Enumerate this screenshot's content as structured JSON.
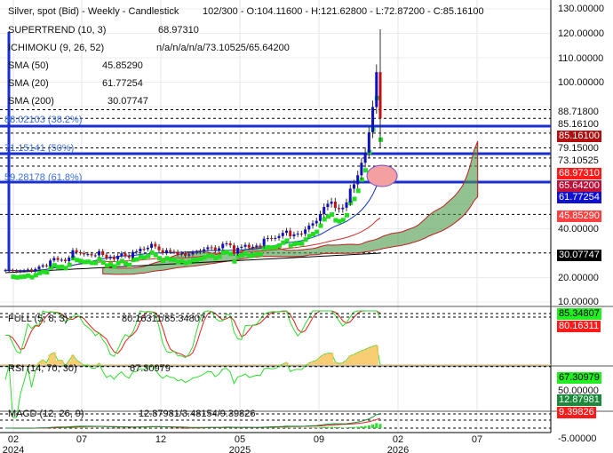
{
  "header": {
    "title": "Silver, spot (Bid) - Weekly - Candlestick",
    "ohlc": "102/300 - O:104.11600 - H:121.62800 - L:72.87200 - C:85.16100"
  },
  "indicators": [
    {
      "name": "SUPERTREND (10, 3)",
      "value": "68.97310"
    },
    {
      "name": "ICHIMOKU (9, 26, 52)",
      "value": "n/a/n/a/n/a/73.10525/65.64200"
    },
    {
      "name": "SMA (50)",
      "value": "45.85290"
    },
    {
      "name": "SMA (20)",
      "value": "61.77254"
    },
    {
      "name": "SMA (200)",
      "value": "30.07747"
    }
  ],
  "fib_levels": [
    {
      "label": "88.02103 (38.2%)"
    },
    {
      "label": "71.15141 (50%)"
    },
    {
      "label": "59.28178 (61.8%)"
    }
  ],
  "oscillators": {
    "stoch": {
      "name": "FULL (5, 8, 3)",
      "value": "80.16311/85.34807"
    },
    "rsi": {
      "name": "RSI (14, 70, 30)",
      "value": "67.30979"
    },
    "macd": {
      "name": "MACD (12, 26, 9)",
      "value": "12.87981/3.48154/9.39826"
    }
  },
  "price_axis": [
    "130.00000",
    "120.00000",
    "110.00000",
    "100.00000",
    "40.00000",
    "20.00000",
    "10.00000"
  ],
  "price_axis_values": [
    130,
    120,
    110,
    100,
    40,
    20,
    10
  ],
  "level_labels": [
    "88.71800",
    "85.16100",
    "79.15000",
    "73.10525"
  ],
  "level_values": [
    88.718,
    85.161,
    79.15,
    73.10525
  ],
  "badges": [
    {
      "text": "85.16100",
      "value": 85.161,
      "color": "#b01010"
    },
    {
      "text": "68.97310",
      "value": 68.9731,
      "color": "#ff1a1a"
    },
    {
      "text": "65.64200",
      "value": 65.642,
      "color": "#c0103a"
    },
    {
      "text": "61.77254",
      "value": 61.77254,
      "color": "#1010d0"
    },
    {
      "text": "45.85290",
      "value": 45.8529,
      "color": "#ff4040"
    },
    {
      "text": "30.07747",
      "value": 30.07747,
      "color": "#000000"
    }
  ],
  "osc_badges": [
    {
      "text": "85.34807",
      "color": "#22ee22",
      "fg": "#000"
    },
    {
      "text": "80.16311",
      "color": "#ff1a1a",
      "fg": "#fff"
    },
    {
      "text": "67.30979",
      "color": "#22ee22",
      "fg": "#000"
    },
    {
      "text": "12.87981",
      "color": "#1a8a3a",
      "fg": "#fff"
    },
    {
      "text": "9.39826",
      "color": "#ff1a1a",
      "fg": "#fff"
    }
  ],
  "osc_axis": {
    "rsi_mid": "50.00000",
    "macd_low": "-5.00000"
  },
  "x_axis": [
    {
      "m": "02",
      "y": "2024"
    },
    {
      "m": "07",
      "y": ""
    },
    {
      "m": "12",
      "y": ""
    },
    {
      "m": "05",
      "y": "2025"
    },
    {
      "m": "09",
      "y": ""
    },
    {
      "m": "02",
      "y": "2026"
    },
    {
      "m": "07",
      "y": ""
    }
  ],
  "colors": {
    "up": "#1010c0",
    "down": "#c01010",
    "sma20": "#1030c0",
    "sma50": "#d03030",
    "sma200": "#000000",
    "supertrend": "#22dd22",
    "fib": "#1a2fd0"
  },
  "chart_data": {
    "type": "candlestick",
    "title": "Silver, spot (Bid) - Weekly - Candlestick",
    "ylim": [
      -5,
      130
    ],
    "x_start": "2024-01",
    "x_end": "2026-01",
    "closes": [
      23,
      23,
      22.8,
      22.5,
      22.7,
      22.9,
      23.3,
      22.6,
      23.5,
      24.5,
      25,
      24.8,
      27,
      28,
      27.2,
      27.3,
      26.7,
      28.2,
      31.2,
      30.4,
      30,
      29.5,
      29.6,
      29.1,
      29.1,
      30.8,
      29.3,
      27.9,
      28.5,
      27.5,
      28.9,
      29.9,
      28.8,
      28.2,
      30.5,
      30.7,
      31.8,
      31.6,
      32.2,
      33.8,
      32.7,
      31.2,
      30.1,
      31.2,
      30.6,
      30.5,
      29.5,
      29.9,
      29.0,
      29.5,
      30.3,
      30.5,
      30.9,
      31.6,
      32.4,
      32.3,
      31.2,
      32,
      33.8,
      34.0,
      33.2,
      29.8,
      32.2,
      32.6,
      33.4,
      32.3,
      32.6,
      33.1,
      33.0,
      35.9,
      36.2,
      36.0,
      36.2,
      37,
      38.3,
      39.2,
      36.9,
      37.7,
      38.0,
      37.9,
      39.7,
      41.3,
      42.2,
      43.2,
      46.0,
      48.9,
      50.2,
      51.1,
      48.5,
      48,
      48.6,
      50.8,
      56.4,
      58.2,
      61.9,
      67,
      71.2,
      79.5,
      89.8,
      104.116,
      85.161
    ],
    "last": {
      "open": 104.116,
      "high": 121.628,
      "low": 72.872,
      "close": 85.161
    }
  }
}
